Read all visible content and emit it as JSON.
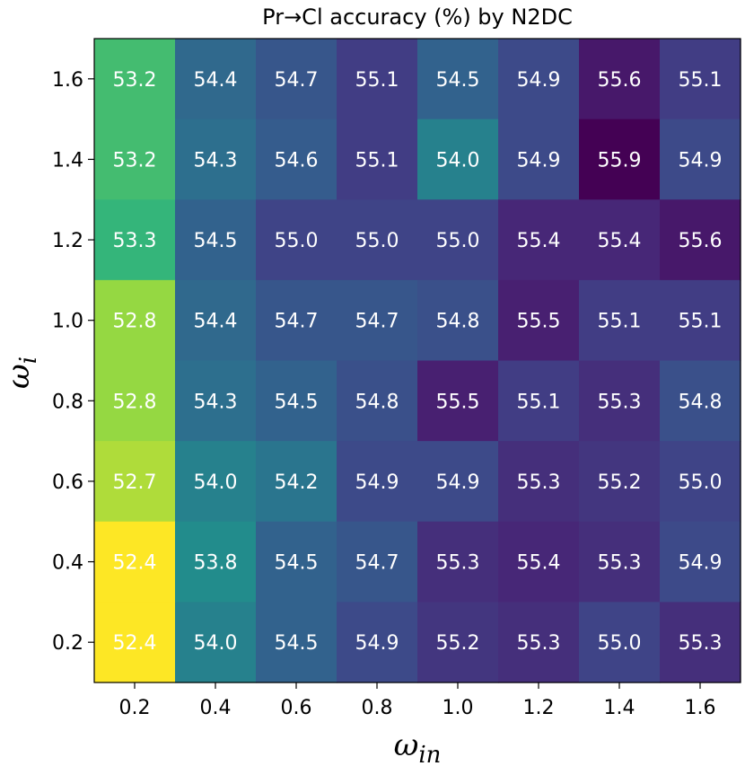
{
  "chart_data": {
    "type": "heatmap",
    "title": "Pr→Cl accuracy (%) by N2DC",
    "xlabel_main": "ω",
    "xlabel_sub": "in",
    "ylabel_main": "ω",
    "ylabel_sub": "i",
    "x_categories": [
      "0.2",
      "0.4",
      "0.6",
      "0.8",
      "1.0",
      "1.2",
      "1.4",
      "1.6"
    ],
    "y_categories": [
      "1.6",
      "1.4",
      "1.2",
      "1.0",
      "0.8",
      "0.6",
      "0.4",
      "0.2"
    ],
    "values": [
      [
        53.2,
        54.4,
        54.7,
        55.1,
        54.5,
        54.9,
        55.6,
        55.1
      ],
      [
        53.2,
        54.3,
        54.6,
        55.1,
        54.0,
        54.9,
        55.9,
        54.9
      ],
      [
        53.3,
        54.5,
        55.0,
        55.0,
        55.0,
        55.4,
        55.4,
        55.6
      ],
      [
        52.8,
        54.4,
        54.7,
        54.7,
        54.8,
        55.5,
        55.1,
        55.1
      ],
      [
        52.8,
        54.3,
        54.5,
        54.8,
        55.5,
        55.1,
        55.3,
        54.8
      ],
      [
        52.7,
        54.0,
        54.2,
        54.9,
        54.9,
        55.3,
        55.2,
        55.0
      ],
      [
        52.4,
        53.8,
        54.5,
        54.7,
        55.3,
        55.4,
        55.3,
        54.9
      ],
      [
        52.4,
        54.0,
        54.5,
        54.9,
        55.2,
        55.3,
        55.0,
        55.3
      ]
    ],
    "value_range": [
      52.4,
      55.9
    ],
    "colormap": "viridis_r",
    "grid": false,
    "legend": "none"
  }
}
